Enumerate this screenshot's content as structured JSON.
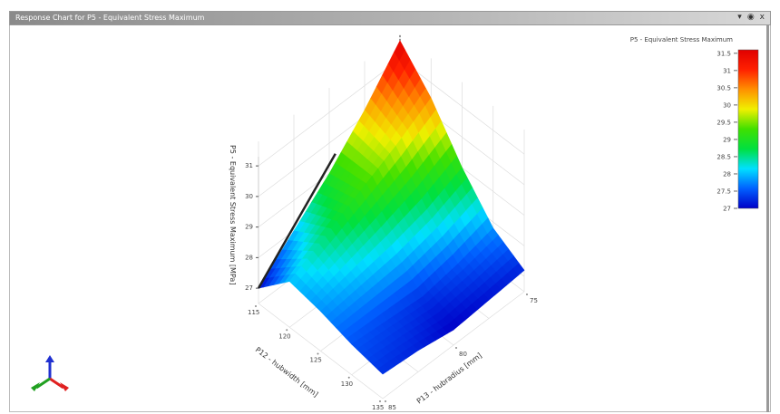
{
  "window": {
    "title": "Response Chart for P5 - Equivalent Stress Maximum",
    "buttons": [
      "▾",
      "◉",
      "x"
    ]
  },
  "chart_data": {
    "type": "surface",
    "title": "",
    "xlabel": "P12 - hubwidth [mm]",
    "ylabel": "P13 - hubradius [mm]",
    "zlabel": "P5 - Equivalent Stress Maximum [MPa]",
    "x_ticks": [
      "115",
      "120",
      "125",
      "130",
      "135"
    ],
    "y_ticks": [
      "75",
      "80",
      "85"
    ],
    "z_ticks": [
      "27",
      "28",
      "29",
      "30",
      "31"
    ],
    "xlim": [
      115,
      135
    ],
    "ylim": [
      75,
      85
    ],
    "zlim": [
      27,
      31.6
    ],
    "x": [
      115,
      120,
      125,
      130,
      135
    ],
    "y": [
      75,
      77.5,
      80,
      82.5,
      85
    ],
    "z": [
      [
        31.6,
        30.5,
        29.0,
        27.8,
        27.2
      ],
      [
        30.2,
        29.8,
        28.5,
        27.5,
        27.1
      ],
      [
        29.0,
        29.2,
        28.2,
        27.3,
        27.0
      ],
      [
        28.0,
        28.6,
        28.0,
        27.4,
        27.2
      ],
      [
        27.0,
        28.0,
        27.8,
        27.5,
        27.3
      ]
    ],
    "legend": {
      "title": "P5 - Equivalent Stress Maximum",
      "ticks": [
        "31.5",
        "31",
        "30.5",
        "30",
        "29.5",
        "29",
        "28.5",
        "28",
        "27.5",
        "27"
      ],
      "colormap": [
        "#0000c8",
        "#0060ff",
        "#00e0ff",
        "#00e040",
        "#40e000",
        "#f0f000",
        "#ff9000",
        "#ff2000",
        "#e00000"
      ],
      "placement": "right"
    }
  },
  "triad": {
    "x_color": "#e02020",
    "y_color": "#20a020",
    "z_color": "#2030d0"
  }
}
